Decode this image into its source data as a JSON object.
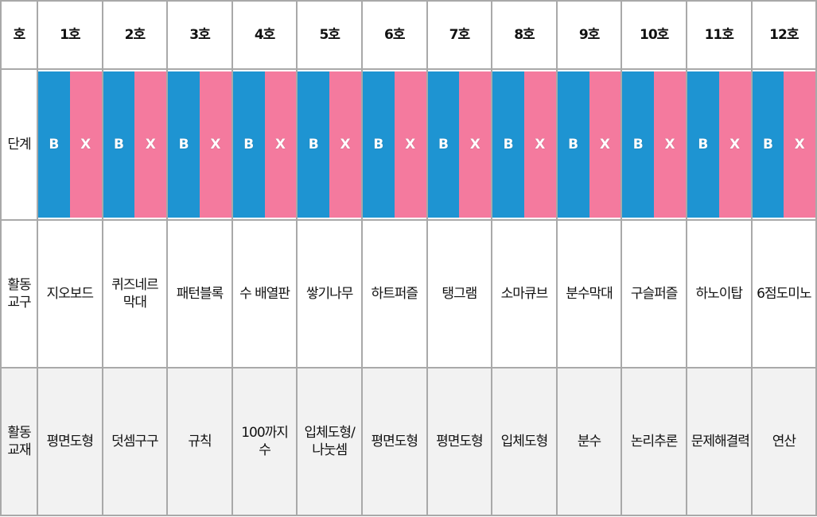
{
  "row_labels": {
    "unit": "호",
    "stage": "단계",
    "tool_line1": "활동",
    "tool_line2": "교구",
    "book_line1": "활동",
    "book_line2": "교재"
  },
  "stage_colors": {
    "B": "#1e94d2",
    "X": "#f47a9e"
  },
  "columns": [
    {
      "unit": "1호",
      "stage_b": "B",
      "stage_x": "X",
      "tool": "지오보드",
      "book": "평면도형"
    },
    {
      "unit": "2호",
      "stage_b": "B",
      "stage_x": "X",
      "tool": "퀴즈네르 막대",
      "book": "덧셈구구"
    },
    {
      "unit": "3호",
      "stage_b": "B",
      "stage_x": "X",
      "tool": "패턴블록",
      "book": "규칙"
    },
    {
      "unit": "4호",
      "stage_b": "B",
      "stage_x": "X",
      "tool": "수 배열판",
      "book": "100까지 수"
    },
    {
      "unit": "5호",
      "stage_b": "B",
      "stage_x": "X",
      "tool": "쌓기나무",
      "book": "입체도형/나눗셈"
    },
    {
      "unit": "6호",
      "stage_b": "B",
      "stage_x": "X",
      "tool": "하트퍼즐",
      "book": "평면도형"
    },
    {
      "unit": "7호",
      "stage_b": "B",
      "stage_x": "X",
      "tool": "탱그램",
      "book": "평면도형"
    },
    {
      "unit": "8호",
      "stage_b": "B",
      "stage_x": "X",
      "tool": "소마큐브",
      "book": "입체도형"
    },
    {
      "unit": "9호",
      "stage_b": "B",
      "stage_x": "X",
      "tool": "분수막대",
      "book": "분수"
    },
    {
      "unit": "10호",
      "stage_b": "B",
      "stage_x": "X",
      "tool": "구슬퍼즐",
      "book": "논리추론"
    },
    {
      "unit": "11호",
      "stage_b": "B",
      "stage_x": "X",
      "tool": "하노이탑",
      "book": "문제해결력"
    },
    {
      "unit": "12호",
      "stage_b": "B",
      "stage_x": "X",
      "tool": "6점도미노",
      "book": "연산"
    }
  ]
}
